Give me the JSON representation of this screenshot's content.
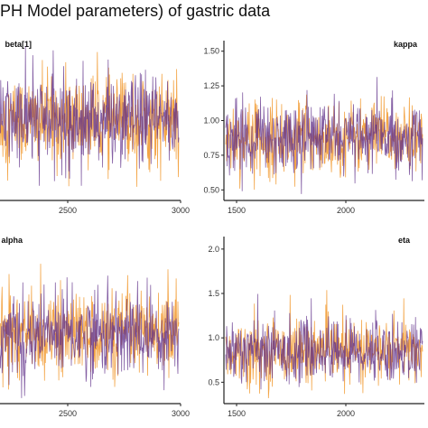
{
  "title": "PH Model parameters) of gastric data",
  "chart_data": [
    {
      "type": "line",
      "panel": "beta[1]",
      "title": "beta[1]",
      "xticks": [
        2500,
        3000
      ],
      "yticks": [],
      "xlim": [
        1500,
        3000
      ],
      "ylim": [
        0.4,
        1.6
      ],
      "series": [
        {
          "color": "#f2a03d",
          "values_center": 1.0,
          "values_spread": 0.18
        },
        {
          "color": "#5b2a86",
          "values_center": 1.0,
          "values_spread": 0.18
        }
      ]
    },
    {
      "type": "line",
      "panel": "kappa",
      "title": "kappa",
      "xticks": [
        1500,
        2000
      ],
      "yticks": [
        "0.50",
        "0.75",
        "1.00",
        "1.25",
        "1.50"
      ],
      "xlim": [
        1500,
        2800
      ],
      "ylim": [
        0.45,
        1.55
      ],
      "series": [
        {
          "color": "#f2a03d",
          "values_center": 0.88,
          "values_spread": 0.13
        },
        {
          "color": "#5b2a86",
          "values_center": 0.88,
          "values_spread": 0.13
        }
      ]
    },
    {
      "type": "line",
      "panel": "alpha",
      "title": "alpha",
      "xticks": [
        2500,
        3000
      ],
      "yticks": [],
      "xlim": [
        1500,
        3000
      ],
      "ylim": [
        0.3,
        2.0
      ],
      "series": [
        {
          "color": "#f2a03d",
          "values_center": 1.0,
          "values_spread": 0.22
        },
        {
          "color": "#5b2a86",
          "values_center": 1.0,
          "values_spread": 0.22
        }
      ]
    },
    {
      "type": "line",
      "panel": "eta",
      "title": "eta",
      "xticks": [
        1500,
        2000
      ],
      "yticks": [
        "0.5",
        "1.0",
        "1.5",
        "2.0"
      ],
      "xlim": [
        1500,
        2800
      ],
      "ylim": [
        0.3,
        2.1
      ],
      "series": [
        {
          "color": "#f2a03d",
          "values_center": 0.85,
          "values_spread": 0.18
        },
        {
          "color": "#5b2a86",
          "values_center": 0.85,
          "values_spread": 0.18
        }
      ]
    }
  ]
}
